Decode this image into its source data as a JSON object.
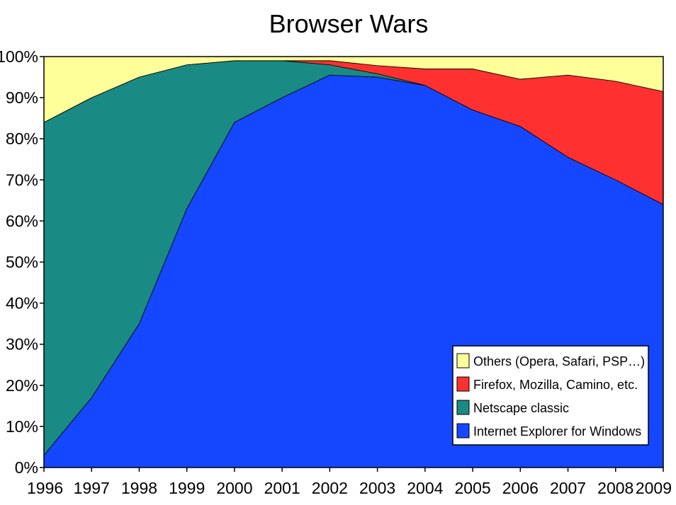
{
  "chart_data": {
    "type": "area",
    "stacked": true,
    "title": "Browser Wars",
    "xlabel": "",
    "ylabel": "",
    "x": [
      "1996",
      "1997",
      "1998",
      "1999",
      "2000",
      "2001",
      "2002",
      "2003",
      "2004",
      "2005",
      "2006",
      "2007",
      "2008",
      "2009"
    ],
    "ylim": [
      0,
      100
    ],
    "y_ticks": [
      "0%",
      "10%",
      "20%",
      "30%",
      "40%",
      "50%",
      "60%",
      "70%",
      "80%",
      "90%",
      "100%"
    ],
    "grid": false,
    "legend_position": "bottom-right",
    "series": [
      {
        "name": "Internet Explorer for Windows",
        "color": "#1447ff",
        "values": [
          3,
          17,
          35,
          63,
          84,
          90,
          95.5,
          95,
          93,
          87,
          83,
          75.5,
          70,
          64
        ]
      },
      {
        "name": "Netscape classic",
        "color": "#1a8a84",
        "values": [
          81,
          73,
          60,
          35,
          15,
          9,
          2.5,
          0.8,
          0,
          0,
          0,
          0,
          0,
          0
        ]
      },
      {
        "name": "Firefox, Mozilla, Camino, etc.",
        "color": "#ff3030",
        "values": [
          0,
          0,
          0,
          0,
          0,
          0,
          1,
          2,
          4,
          10,
          11.5,
          20,
          24,
          27.5
        ]
      },
      {
        "name": "Others (Opera, Safari, PSP…)",
        "color": "#ffff99",
        "values": [
          16,
          10,
          5,
          2,
          1,
          1,
          1,
          2.2,
          3,
          3,
          5.5,
          4.5,
          6,
          8.5
        ]
      }
    ],
    "legend_order": [
      3,
      2,
      1,
      0
    ]
  }
}
